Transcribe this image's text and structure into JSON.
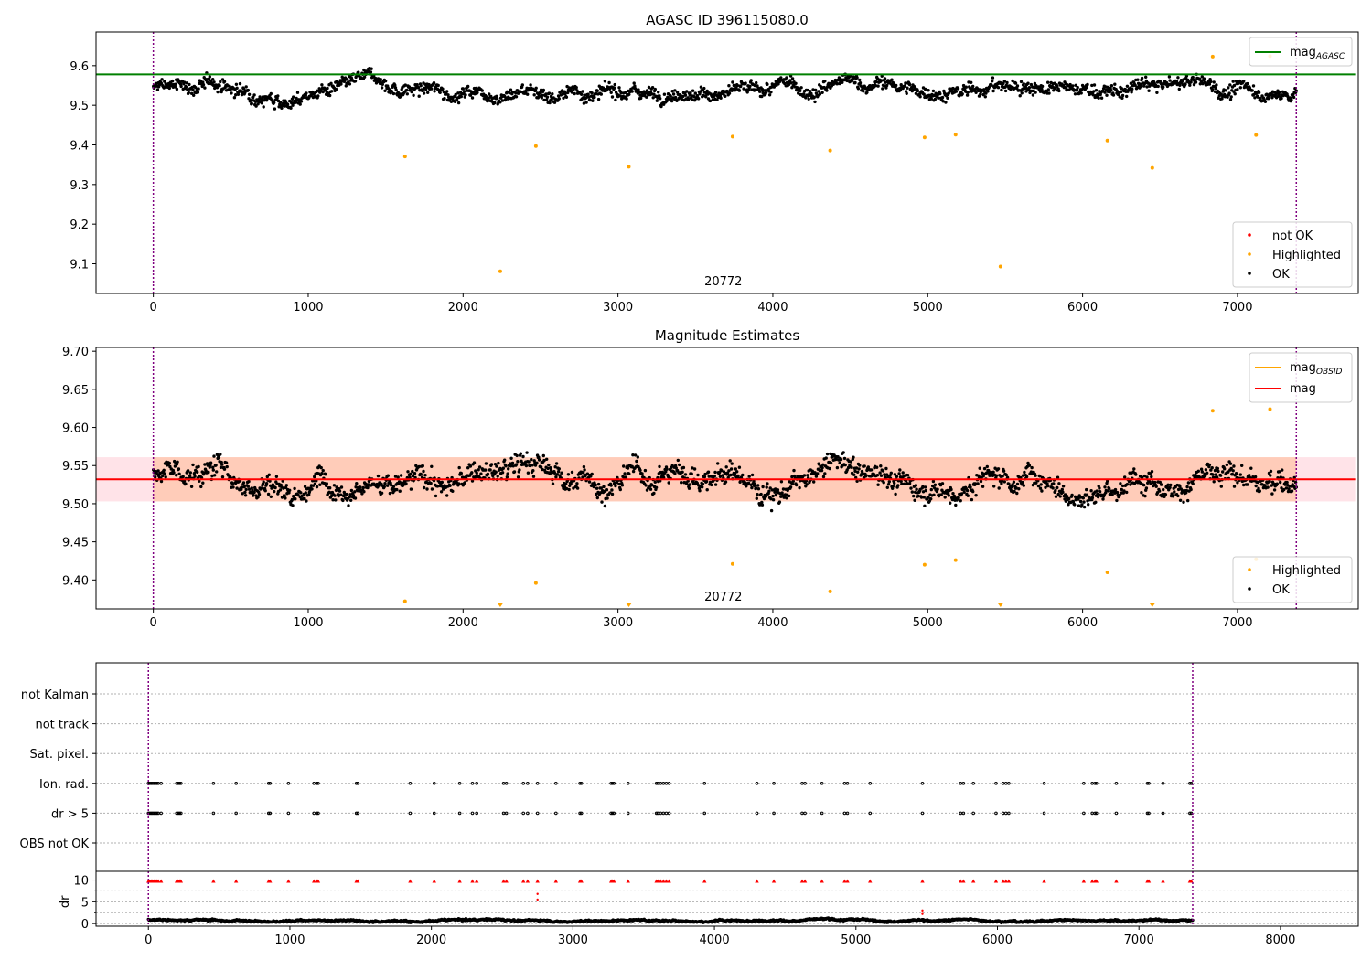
{
  "chart_data": [
    {
      "type": "scatter",
      "title": "AGASC ID 396115080.0",
      "xlim": [
        -370,
        7780
      ],
      "ylim": [
        9.025,
        9.685
      ],
      "xticks": [
        0,
        1000,
        2000,
        3000,
        4000,
        5000,
        6000,
        7000,
        8000
      ],
      "yticks": [
        9.1,
        9.2,
        9.3,
        9.4,
        9.5,
        9.6
      ],
      "ytick_labels": [
        "9.1",
        "9.2",
        "9.3",
        "9.4",
        "9.5",
        "9.6"
      ],
      "obsid_label": {
        "text": "20772",
        "x": 3680
      },
      "vlines": [
        0,
        7380
      ],
      "hline": {
        "name": "mag_AGASC",
        "y": 9.578,
        "x": [
          -370,
          7760
        ],
        "color": "#008000"
      },
      "ok_band": {
        "x": [
          0,
          7380
        ],
        "center": 9.54,
        "amp": 0.04
      },
      "highlighted": {
        "x": [
          1625,
          2240,
          2470,
          3070,
          3740,
          4370,
          4980,
          5180,
          5470,
          6160,
          6450,
          6840,
          7120,
          7210
        ],
        "y": [
          9.371,
          9.081,
          9.397,
          9.345,
          9.421,
          9.386,
          9.419,
          9.426,
          9.093,
          9.411,
          9.342,
          9.623,
          9.425,
          9.624
        ]
      },
      "legend_lines": {
        "entries": [
          {
            "label": "mag",
            "sub": "AGASC",
            "color": "#008000"
          }
        ],
        "loc": "upper right"
      },
      "legend_points": {
        "entries": [
          {
            "label": "not OK",
            "color": "#ff0000"
          },
          {
            "label": "Highlighted",
            "color": "#ffa500"
          },
          {
            "label": "OK",
            "color": "#000000"
          }
        ],
        "loc": "lower right"
      }
    },
    {
      "type": "scatter",
      "title": "Magnitude Estimates",
      "xlim": [
        -370,
        7780
      ],
      "ylim": [
        9.362,
        9.705
      ],
      "xticks": [
        0,
        1000,
        2000,
        3000,
        4000,
        5000,
        6000,
        7000,
        8000
      ],
      "yticks": [
        9.4,
        9.45,
        9.5,
        9.55,
        9.6,
        9.65,
        9.7
      ],
      "ytick_labels": [
        "9.40",
        "9.45",
        "9.50",
        "9.55",
        "9.60",
        "9.65",
        "9.70"
      ],
      "obsid_label": {
        "text": "20772",
        "x": 3680
      },
      "vlines": [
        0,
        7380
      ],
      "mag_line": {
        "name": "mag",
        "y": 9.532,
        "x": [
          -370,
          7760
        ],
        "color": "#ff0000"
      },
      "mag_band": {
        "y": [
          9.503,
          9.561
        ],
        "x": [
          -370,
          7760
        ],
        "color": "#ffc0cb"
      },
      "obsid_band": {
        "y": [
          9.503,
          9.561
        ],
        "x": [
          0,
          7380
        ],
        "color": "#ffa500"
      },
      "ok_band": {
        "x": [
          0,
          7380
        ],
        "center": 9.535,
        "amp": 0.035
      },
      "highlighted": {
        "x": [
          1625,
          2470,
          3740,
          4370,
          4980,
          5180,
          6160,
          6840,
          7120,
          7210
        ],
        "y": [
          9.372,
          9.396,
          9.421,
          9.385,
          9.42,
          9.426,
          9.41,
          9.622,
          9.427,
          9.624
        ]
      },
      "off_scale_low_x": [
        2240,
        3070,
        5470,
        6450
      ],
      "legend_lines": {
        "entries": [
          {
            "label": "mag",
            "sub": "OBSID",
            "color": "#ffa500"
          },
          {
            "label": "mag",
            "sub": "",
            "color": "#ff0000"
          }
        ],
        "loc": "upper right"
      },
      "legend_points": {
        "entries": [
          {
            "label": "Highlighted",
            "color": "#ffa500"
          },
          {
            "label": "OK",
            "color": "#000000"
          }
        ],
        "loc": "lower right"
      }
    },
    {
      "type": "scatter",
      "title": "",
      "xlim": [
        -370,
        8550
      ],
      "categories": [
        "not Kalman",
        "not track",
        "Sat. pixel.",
        "Ion. rad.",
        "dr > 5",
        "OBS not OK"
      ],
      "flag_x": [
        0,
        10,
        20,
        30,
        40,
        50,
        60,
        70,
        90,
        200,
        210,
        220,
        230,
        460,
        620,
        850,
        860,
        990,
        1170,
        1190,
        1200,
        1470,
        1480,
        1850,
        2020,
        2200,
        2290,
        2320,
        2510,
        2530,
        2650,
        2680,
        2750,
        2880,
        3050,
        3060,
        3270,
        3280,
        3290,
        3390,
        3590,
        3600,
        3620,
        3640,
        3660,
        3680,
        3930,
        4300,
        4420,
        4620,
        4640,
        4760,
        4920,
        4940,
        5100,
        5470,
        5740,
        5760,
        5830,
        5990,
        6040,
        6060,
        6080,
        6330,
        6610,
        6670,
        6690,
        6700,
        6840,
        7060,
        7070,
        7170,
        7360,
        7370
      ],
      "flag_rows": [
        "Ion. rad.",
        "dr > 5"
      ],
      "vlines": [
        0,
        7380
      ]
    },
    {
      "type": "scatter",
      "title": "",
      "ylabel": "dr",
      "xlim": [
        -370,
        8550
      ],
      "ylim": [
        -0.6,
        12
      ],
      "xticks": [
        0,
        1000,
        2000,
        3000,
        4000,
        5000,
        6000,
        7000,
        8000
      ],
      "yticks": [
        0,
        5,
        10
      ],
      "ytick_labels": [
        "0",
        "5",
        "10"
      ],
      "grid_y": [
        0,
        2.5,
        5,
        7.5,
        10
      ],
      "vlines": [
        0,
        7380
      ],
      "ok_band": {
        "x": [
          0,
          7380
        ],
        "center": 0.8,
        "amp": 0.5
      },
      "red_points": {
        "x": [
          2750,
          2750,
          5470,
          5470
        ],
        "y": [
          5.5,
          6.8,
          2.2,
          3.0
        ]
      },
      "flag_x_red": [
        0,
        10,
        20,
        30,
        40,
        50,
        60,
        70,
        90,
        200,
        210,
        220,
        230,
        460,
        620,
        850,
        860,
        990,
        1170,
        1190,
        1200,
        1470,
        1480,
        1850,
        2020,
        2200,
        2290,
        2320,
        2510,
        2530,
        2650,
        2680,
        2750,
        2880,
        3050,
        3060,
        3270,
        3280,
        3290,
        3390,
        3590,
        3600,
        3620,
        3640,
        3660,
        3680,
        3930,
        4300,
        4420,
        4620,
        4640,
        4760,
        4920,
        4940,
        5100,
        5470,
        5740,
        5760,
        5830,
        5990,
        6040,
        6060,
        6080,
        6330,
        6610,
        6670,
        6690,
        6700,
        6840,
        7060,
        7070,
        7170,
        7360,
        7370
      ]
    }
  ]
}
